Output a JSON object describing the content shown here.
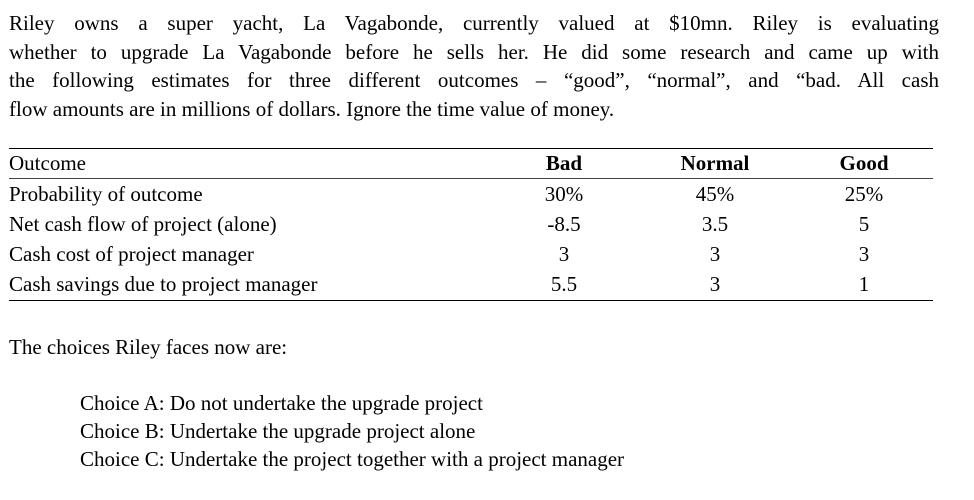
{
  "intro": {
    "lines": [
      "Riley owns a super yacht, La Vagabonde, currently valued at $10mn. Riley is evaluating",
      "whether to upgrade La Vagabonde before he sells her. He did some research and came up with",
      "the following estimates for three different outcomes – “good”, “normal”, and “bad. All cash",
      "flow amounts are in millions of dollars. Ignore the time value of money."
    ]
  },
  "table": {
    "headers": [
      "Outcome",
      "Bad",
      "Normal",
      "Good"
    ],
    "rows": [
      {
        "label": "Probability of outcome",
        "bad": "30%",
        "normal": "45%",
        "good": "25%"
      },
      {
        "label": "Net cash flow of project (alone)",
        "bad": "-8.5",
        "normal": "3.5",
        "good": "5"
      },
      {
        "label": "Cash cost of project manager",
        "bad": "3",
        "normal": "3",
        "good": "3"
      },
      {
        "label": "Cash savings due to project manager",
        "bad": "5.5",
        "normal": "3",
        "good": "1"
      }
    ]
  },
  "choices_intro": "The choices Riley faces now are:",
  "choices": [
    "Choice A: Do not undertake the upgrade project",
    "Choice B: Undertake the upgrade project alone",
    "Choice C: Undertake the project together with a project manager"
  ]
}
